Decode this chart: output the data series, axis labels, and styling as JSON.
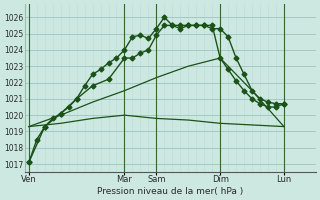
{
  "xlabel": "Pression niveau de la mer( hPa )",
  "background_color": "#cce8e0",
  "grid_color_major": "#99bbbb",
  "grid_color_minor": "#bbdddd",
  "line_color": "#1a5218",
  "ylim": [
    1016.5,
    1026.8
  ],
  "yticks": [
    1017,
    1018,
    1019,
    1020,
    1021,
    1022,
    1023,
    1024,
    1025,
    1026
  ],
  "day_labels": [
    "Ven",
    "Mar",
    "Sam",
    "Dim",
    "Lun"
  ],
  "day_positions": [
    0,
    12,
    16,
    24,
    32
  ],
  "vline_positions": [
    0,
    12,
    16,
    24,
    32
  ],
  "xlim": [
    -0.5,
    36
  ],
  "series": [
    {
      "x": [
        0,
        1,
        2,
        3,
        4,
        5,
        6,
        7,
        8,
        9,
        10,
        11,
        12,
        13,
        14,
        15,
        16,
        17,
        18,
        19,
        20,
        21,
        22,
        23,
        24,
        25,
        26,
        27,
        28,
        29,
        30,
        31,
        32
      ],
      "y": [
        1017.1,
        1018.5,
        1019.3,
        1019.8,
        1020.1,
        1020.5,
        1021.0,
        1021.8,
        1022.5,
        1022.8,
        1023.2,
        1023.5,
        1024.0,
        1024.8,
        1024.9,
        1024.7,
        1025.3,
        1026.0,
        1025.5,
        1025.3,
        1025.5,
        1025.5,
        1025.5,
        1025.5,
        1023.5,
        1022.8,
        1022.1,
        1021.5,
        1021.0,
        1020.7,
        1020.5,
        1020.5,
        1020.7
      ],
      "marker": "D",
      "markersize": 2.5,
      "linewidth": 1.0
    },
    {
      "x": [
        0,
        2,
        4,
        6,
        8,
        10,
        12,
        13,
        14,
        15,
        16,
        17,
        18,
        19,
        20,
        21,
        22,
        23,
        24,
        25,
        26,
        27,
        28,
        29,
        30,
        31,
        32
      ],
      "y": [
        1017.1,
        1019.3,
        1020.1,
        1021.0,
        1021.8,
        1022.2,
        1023.5,
        1023.5,
        1023.8,
        1024.0,
        1024.9,
        1025.5,
        1025.5,
        1025.5,
        1025.5,
        1025.5,
        1025.5,
        1025.3,
        1025.3,
        1024.8,
        1023.5,
        1022.5,
        1021.5,
        1021.0,
        1020.8,
        1020.7,
        1020.7
      ],
      "marker": "D",
      "markersize": 2.5,
      "linewidth": 1.0
    },
    {
      "x": [
        0,
        4,
        8,
        12,
        16,
        20,
        24,
        28,
        32
      ],
      "y": [
        1019.3,
        1019.5,
        1019.8,
        1020.0,
        1019.8,
        1019.7,
        1019.5,
        1019.4,
        1019.3
      ],
      "marker": "None",
      "markersize": 0,
      "linewidth": 0.9
    },
    {
      "x": [
        0,
        4,
        8,
        12,
        16,
        20,
        24,
        28,
        32
      ],
      "y": [
        1019.3,
        1020.0,
        1020.8,
        1021.5,
        1022.3,
        1023.0,
        1023.5,
        1021.5,
        1019.3
      ],
      "marker": "None",
      "markersize": 0,
      "linewidth": 0.9
    }
  ]
}
